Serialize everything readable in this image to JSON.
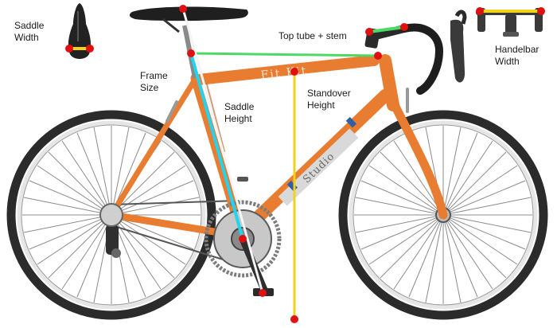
{
  "labels": {
    "saddle_width": "Saddle\nWidth",
    "top_tube_stem": "Top tube + stem",
    "handlebar_width": "Handelbar\nWidth",
    "frame_size": "Frame\nSize",
    "saddle_height": "Saddle\nHeight",
    "standover_height": "Standover\nHeight"
  },
  "branding": {
    "top_tube_word": "Fit Kit",
    "down_tube_word": "Studio"
  },
  "colors": {
    "frame": "#e87c30",
    "frame_dark": "#b85a1c",
    "tire": "#2b2b2b",
    "rim": "#e6e6e6",
    "spoke": "#8c8c8c",
    "component": "#3a3a3a",
    "measure_point": "#e01010",
    "saddle_width_line": "#f3d21a",
    "handlebar_width_line": "#f3d21a",
    "top_tube_stem_line": "#4cd964",
    "frame_size_line": "#22d4ef",
    "saddle_height_line": "#f4f4f4",
    "standover_line": "#f3d21a"
  },
  "icons": [
    "saddle-topview-icon",
    "handlebar-topview-icon"
  ]
}
